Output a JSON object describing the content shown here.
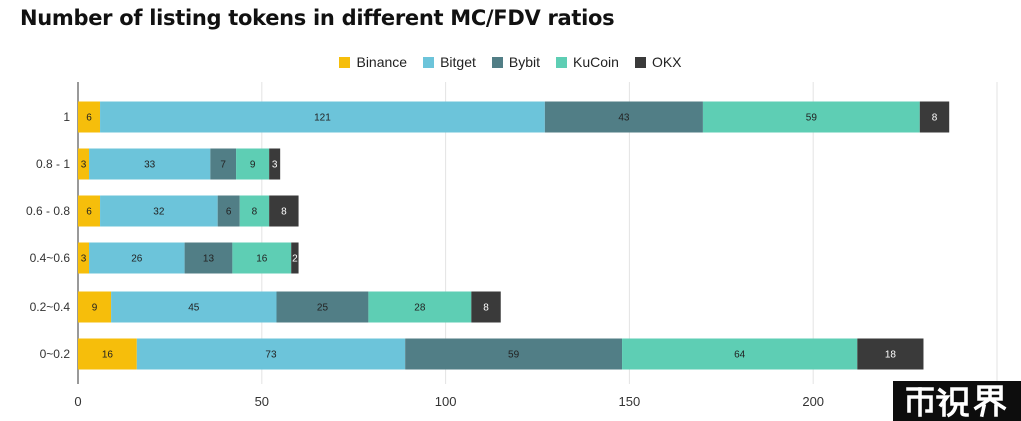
{
  "chart_data": {
    "type": "bar",
    "orientation": "horizontal",
    "stacked": true,
    "title": "Number of listing tokens in different MC/FDV ratios",
    "categories": [
      "1",
      "0.8 - 1",
      "0.6 - 0.8",
      "0.4~0.6",
      "0.2~0.4",
      "0~0.2"
    ],
    "series": [
      {
        "name": "Binance",
        "color": "#F6BE0B",
        "values": [
          6,
          3,
          6,
          3,
          9,
          16
        ]
      },
      {
        "name": "Bitget",
        "color": "#6CC4DA",
        "values": [
          121,
          33,
          32,
          26,
          45,
          73
        ]
      },
      {
        "name": "Bybit",
        "color": "#517E86",
        "values": [
          43,
          7,
          6,
          13,
          25,
          59
        ]
      },
      {
        "name": "KuCoin",
        "color": "#5ECEB4",
        "values": [
          59,
          9,
          8,
          16,
          28,
          64
        ]
      },
      {
        "name": "OKX",
        "color": "#3A3A3A",
        "values": [
          8,
          3,
          8,
          2,
          8,
          18
        ]
      }
    ],
    "xlim": [
      0,
      250
    ],
    "xticks": [
      0,
      50,
      100,
      150,
      200
    ],
    "grid": "vertical",
    "legend_position": "top-center",
    "data_labels": true
  },
  "watermark": {
    "text": "币视界"
  }
}
